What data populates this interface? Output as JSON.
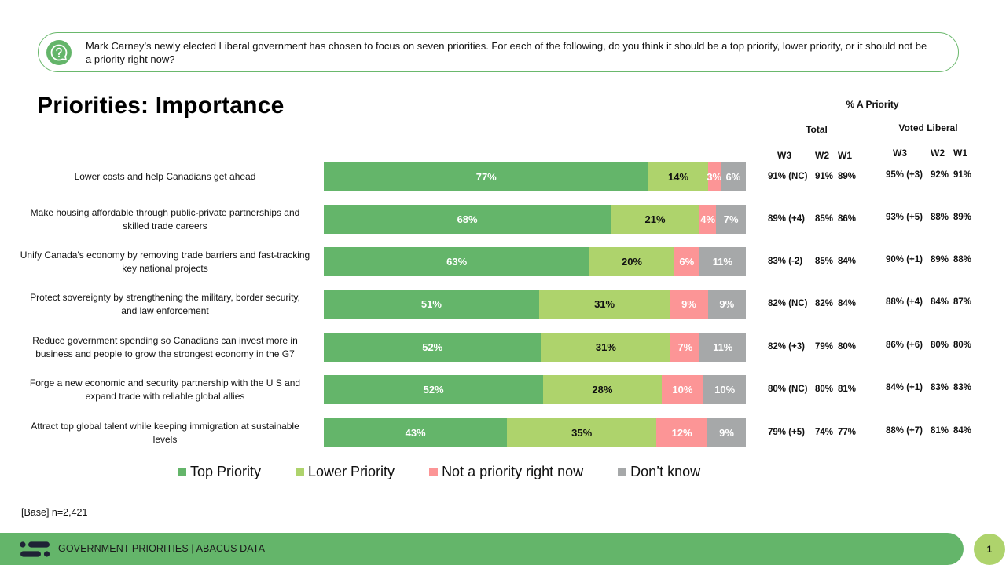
{
  "question": {
    "icon": "question-chat-icon",
    "text": "Mark Carney’s newly elected Liberal government has chosen to focus on seven priorities. For each of the following, do you think it should be a top priority, lower priority, or it should not be a priority right now?"
  },
  "page_title": "Priorities: Importance",
  "side_table": {
    "heading": "% A Priority",
    "groups": [
      {
        "name": "Total",
        "columns": [
          "W3",
          "W2",
          "W1"
        ]
      },
      {
        "name": "Voted Liberal",
        "columns": [
          "W3",
          "W2",
          "W1"
        ]
      }
    ],
    "rows": [
      {
        "total": [
          "91% (NC)",
          "91%",
          "89%"
        ],
        "liberal": [
          "95% (+3)",
          "92%",
          "91%"
        ]
      },
      {
        "total": [
          "89% (+4)",
          "85%",
          "86%"
        ],
        "liberal": [
          "93% (+5)",
          "88%",
          "89%"
        ]
      },
      {
        "total": [
          "83% (-2)",
          "85%",
          "84%"
        ],
        "liberal": [
          "90% (+1)",
          "89%",
          "88%"
        ]
      },
      {
        "total": [
          "82% (NC)",
          "82%",
          "84%"
        ],
        "liberal": [
          "88% (+4)",
          "84%",
          "87%"
        ]
      },
      {
        "total": [
          "82% (+3)",
          "79%",
          "80%"
        ],
        "liberal": [
          "86% (+6)",
          "80%",
          "80%"
        ]
      },
      {
        "total": [
          "80% (NC)",
          "80%",
          "81%"
        ],
        "liberal": [
          "84% (+1)",
          "83%",
          "83%"
        ]
      },
      {
        "total": [
          "79% (+5)",
          "74%",
          "77%"
        ],
        "liberal": [
          "88% (+7)",
          "81%",
          "84%"
        ]
      }
    ]
  },
  "chart_data": {
    "type": "bar",
    "orientation": "horizontal",
    "stacked": true,
    "title": "Priorities: Importance",
    "xlabel": "",
    "ylabel": "",
    "xlim": [
      0,
      100
    ],
    "grid": false,
    "legend_position": "bottom",
    "categories": [
      [
        "Lower costs and help Canadians get ahead"
      ],
      [
        "Make housing affordable through public-private partnerships and",
        "skilled trade careers"
      ],
      [
        "Unify Canada's economy by removing trade barriers and fast-tracking",
        "key national projects"
      ],
      [
        "Protect sovereignty by strengthening the military, border security,",
        "and law enforcement"
      ],
      [
        "Reduce government spending so Canadians can invest more in",
        "business and people to grow the strongest economy in the G7"
      ],
      [
        "Forge a new economic and security partnership with the U S  and",
        "expand trade with reliable global allies"
      ],
      [
        "Attract top global talent while keeping immigration at sustainable",
        "levels"
      ]
    ],
    "series": [
      {
        "name": "Top Priority",
        "key": "top",
        "color": "#64b56a",
        "values": [
          77,
          68,
          63,
          51,
          52,
          52,
          43
        ]
      },
      {
        "name": "Lower Priority",
        "key": "lower",
        "color": "#aed36c",
        "values": [
          14,
          21,
          20,
          31,
          31,
          28,
          35
        ]
      },
      {
        "name": "Not a priority right now",
        "key": "not",
        "color": "#fc9596",
        "values": [
          3,
          4,
          6,
          9,
          7,
          10,
          12
        ]
      },
      {
        "name": "Don’t know",
        "key": "dk",
        "color": "#a6a8a9",
        "values": [
          6,
          7,
          11,
          9,
          11,
          10,
          9
        ]
      }
    ],
    "value_suffix": "%"
  },
  "base_note": "[Base] n=2,421",
  "footer": {
    "logo": "abacus-logo-icon",
    "text": "GOVERNMENT PRIORITIES |  ABACUS DATA",
    "page_number": "1"
  }
}
